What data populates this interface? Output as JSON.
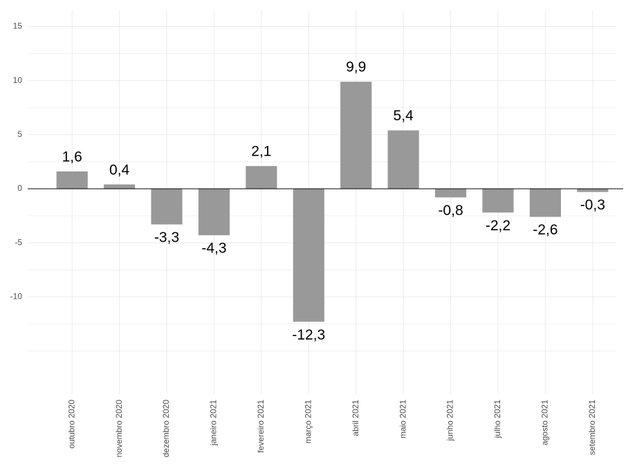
{
  "chart_data": {
    "type": "bar",
    "categories": [
      "outubro 2020",
      "novembro 2020",
      "dezembro 2020",
      "janeiro 2021",
      "fevereiro 2021",
      "março 2021",
      "abril 2021",
      "maio 2021",
      "junho 2021",
      "julho 2021",
      "agosto 2021",
      "setembro 2021"
    ],
    "values": [
      1.6,
      0.4,
      -3.3,
      -4.3,
      2.1,
      -12.3,
      9.9,
      5.4,
      -0.8,
      -2.2,
      -2.6,
      -0.3
    ],
    "value_labels": [
      "1,6",
      "0,4",
      "-3,3",
      "-4,3",
      "2,1",
      "-12,3",
      "9,9",
      "5,4",
      "-0,8",
      "-2,2",
      "-2,6",
      "-0,3"
    ],
    "color": "#999999",
    "ylim": [
      -19,
      16.5
    ],
    "yticks": [
      -10,
      -5,
      0,
      5,
      10,
      15
    ],
    "minor_yticks": [
      -15,
      -12.5,
      -7.5,
      -2.5,
      2.5,
      7.5,
      12.5
    ],
    "grid": true
  }
}
